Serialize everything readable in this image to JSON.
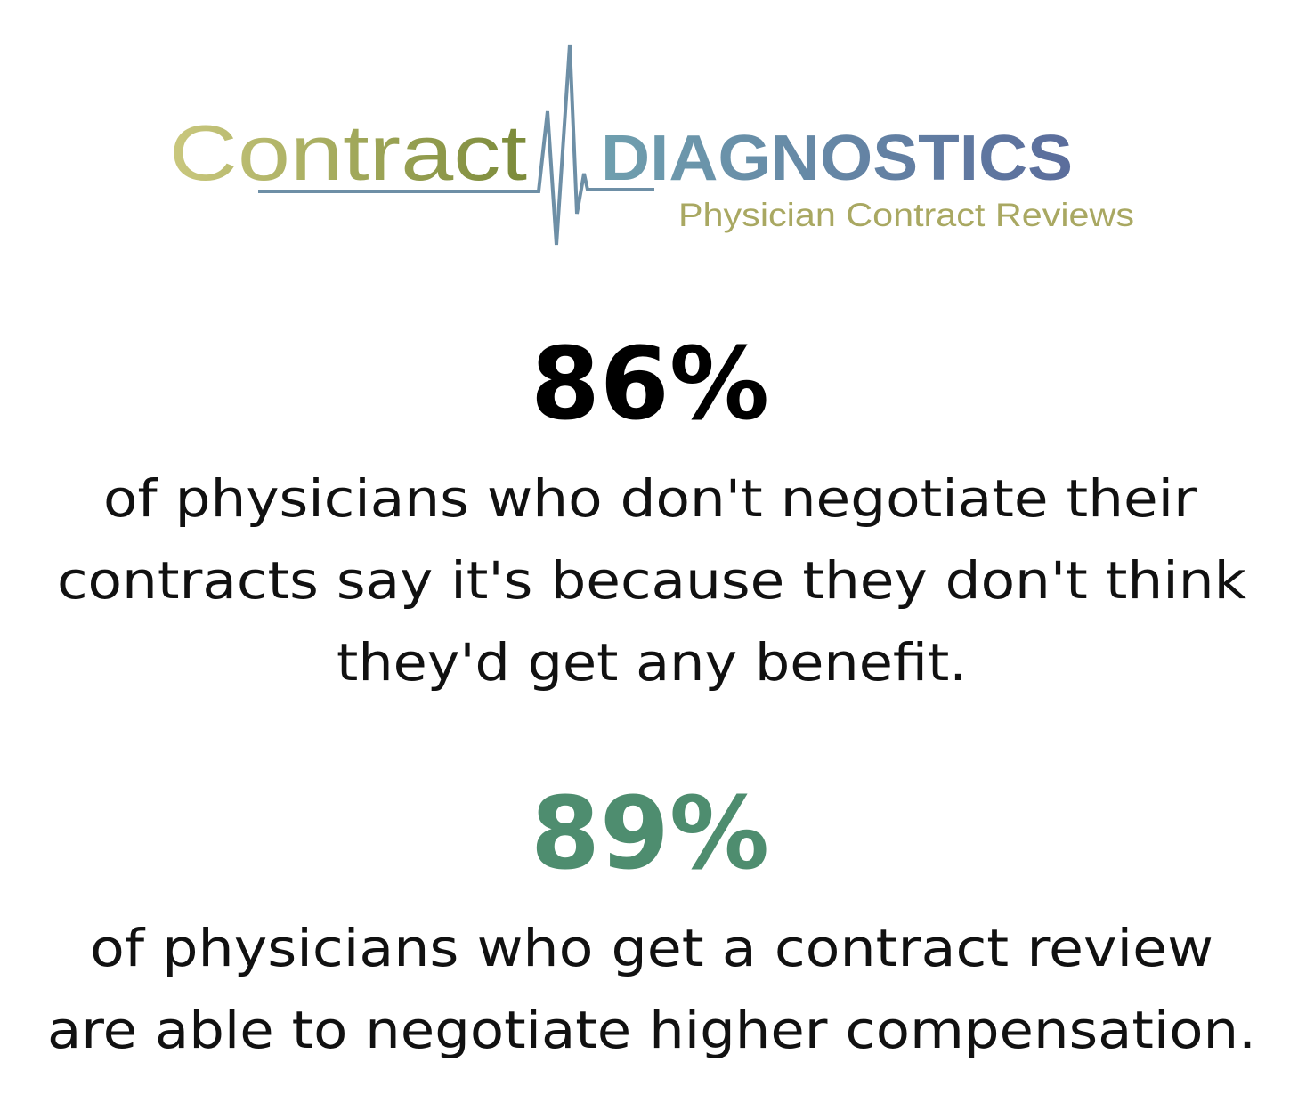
{
  "logo": {
    "word": "Contract",
    "brand": "DIAGNOSTICS",
    "tagline": "Physician Contract Reviews"
  },
  "stats": [
    {
      "figure": "86%",
      "lines": [
        "of physicians who don't negotiate their",
        "contracts say it's because they don't think",
        "they'd get any benefit."
      ]
    },
    {
      "figure": "89%",
      "lines": [
        "of physicians who get a contract review",
        "are able to negotiate higher compensation."
      ]
    }
  ]
}
